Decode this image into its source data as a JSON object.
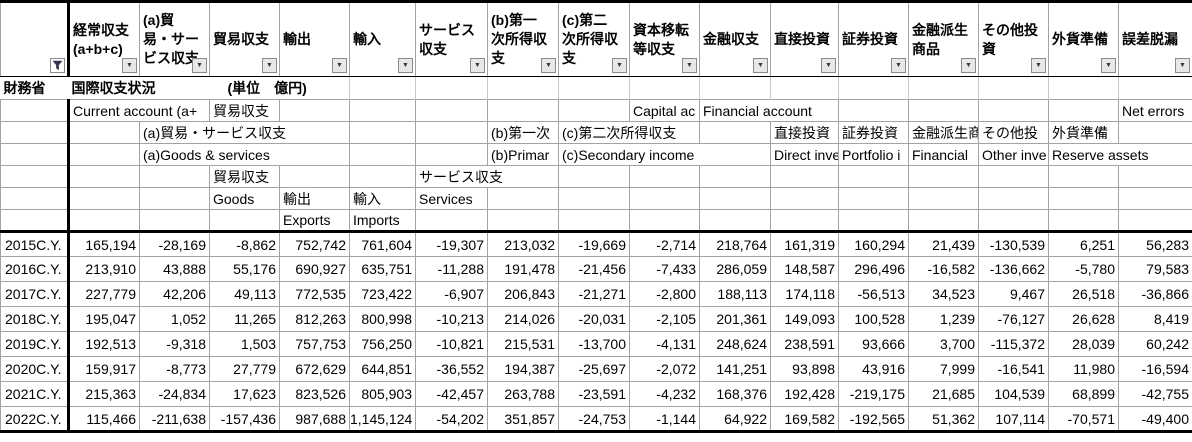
{
  "title_bar": {
    "agency": "財務省",
    "title": "国際収支状況",
    "unit": "(単位　億円)"
  },
  "colors": {
    "gridline": "#a3a3a3",
    "structural_border": "#000000",
    "button_bg": "#e8e8e8",
    "funnel_icon": "#33334d"
  },
  "icons": {
    "filter_funnel": "funnel-filter-applied",
    "dropdown_arrow": "▼"
  },
  "columns": [
    {
      "key": "year",
      "label": ""
    },
    {
      "key": "current_account",
      "label": "経常収支\n(a+b+c)"
    },
    {
      "key": "goods_services",
      "label": "(a)貿\n易・サー\nビス収支"
    },
    {
      "key": "trade_balance",
      "label": "貿易収支"
    },
    {
      "key": "exports",
      "label": "輸出"
    },
    {
      "key": "imports",
      "label": "輸入"
    },
    {
      "key": "services",
      "label": "サービス\n収支"
    },
    {
      "key": "primary_income",
      "label": "(b)第一\n次所得収\n支"
    },
    {
      "key": "secondary_income",
      "label": "(c)第二\n次所得収\n支"
    },
    {
      "key": "capital_account",
      "label": "資本移転\n等収支"
    },
    {
      "key": "financial_account",
      "label": "金融収支"
    },
    {
      "key": "direct_investment",
      "label": "直接投資"
    },
    {
      "key": "portfolio_investment",
      "label": "証券投資"
    },
    {
      "key": "financial_derivatives",
      "label": "金融派生\n商品"
    },
    {
      "key": "other_investment",
      "label": "その他投\n資"
    },
    {
      "key": "reserve_assets",
      "label": "外貨準備"
    },
    {
      "key": "errors_omissions",
      "label": "誤差脱漏"
    }
  ],
  "subheader": {
    "current_account_en": "Current account (a+",
    "trade_balance_jp_row1": "貿易収支",
    "capital_account_en": "Capital ac",
    "financial_account_en": "Financial account",
    "net_errors_en": "Net errors",
    "goods_services_jp": "(a)貿易・サービス収支",
    "primary_income_jp": "(b)第一次",
    "secondary_income_jp": "(c)第二次所得収支",
    "direct_investment_jp": "直接投資",
    "portfolio_investment_jp": "証券投資",
    "financial_derivatives_jp": "金融派生商",
    "other_investment_jp": "その他投",
    "reserve_assets_jp": "外貨準備",
    "goods_services_en": "(a)Goods & services",
    "primary_income_en": "(b)Primar",
    "secondary_income_en": "(c)Secondary income",
    "direct_investment_en": "Direct inve",
    "portfolio_investment_en": "Portfolio i",
    "financial_derivatives_en": "Financial",
    "other_investment_en": "Other inve",
    "reserve_assets_en": "Reserve assets",
    "trade_balance_jp_row4": "貿易収支",
    "services_balance_jp": "サービス収支",
    "goods_en": "Goods",
    "exports_jp": "輸出",
    "imports_jp": "輸入",
    "services_en": "Services",
    "exports_en": "Exports",
    "imports_en": "Imports"
  },
  "rows": [
    {
      "year": "2015C.Y.",
      "values": [
        "165,194",
        "-28,169",
        "-8,862",
        "752,742",
        "761,604",
        "-19,307",
        "213,032",
        "-19,669",
        "-2,714",
        "218,764",
        "161,319",
        "160,294",
        "21,439",
        "-130,539",
        "6,251",
        "56,283"
      ]
    },
    {
      "year": "2016C.Y.",
      "values": [
        "213,910",
        "43,888",
        "55,176",
        "690,927",
        "635,751",
        "-11,288",
        "191,478",
        "-21,456",
        "-7,433",
        "286,059",
        "148,587",
        "296,496",
        "-16,582",
        "-136,662",
        "-5,780",
        "79,583"
      ]
    },
    {
      "year": "2017C.Y.",
      "values": [
        "227,779",
        "42,206",
        "49,113",
        "772,535",
        "723,422",
        "-6,907",
        "206,843",
        "-21,271",
        "-2,800",
        "188,113",
        "174,118",
        "-56,513",
        "34,523",
        "9,467",
        "26,518",
        "-36,866"
      ]
    },
    {
      "year": "2018C.Y.",
      "values": [
        "195,047",
        "1,052",
        "11,265",
        "812,263",
        "800,998",
        "-10,213",
        "214,026",
        "-20,031",
        "-2,105",
        "201,361",
        "149,093",
        "100,528",
        "1,239",
        "-76,127",
        "26,628",
        "8,419"
      ]
    },
    {
      "year": "2019C.Y.",
      "values": [
        "192,513",
        "-9,318",
        "1,503",
        "757,753",
        "756,250",
        "-10,821",
        "215,531",
        "-13,700",
        "-4,131",
        "248,624",
        "238,591",
        "93,666",
        "3,700",
        "-115,372",
        "28,039",
        "60,242"
      ]
    },
    {
      "year": "2020C.Y.",
      "values": [
        "159,917",
        "-8,773",
        "27,779",
        "672,629",
        "644,851",
        "-36,552",
        "194,387",
        "-25,697",
        "-2,072",
        "141,251",
        "93,898",
        "43,916",
        "7,999",
        "-16,541",
        "11,980",
        "-16,594"
      ]
    },
    {
      "year": "2021C.Y.",
      "values": [
        "215,363",
        "-24,834",
        "17,623",
        "823,526",
        "805,903",
        "-42,457",
        "263,788",
        "-23,591",
        "-4,232",
        "168,376",
        "192,428",
        "-219,175",
        "21,685",
        "104,539",
        "68,899",
        "-42,755"
      ]
    },
    {
      "year": "2022C.Y.",
      "values": [
        "115,466",
        "-211,638",
        "-157,436",
        "987,688",
        "1,145,124",
        "-54,202",
        "351,857",
        "-24,753",
        "-1,144",
        "64,922",
        "169,582",
        "-192,565",
        "51,362",
        "107,114",
        "-70,571",
        "-49,400"
      ]
    }
  ]
}
